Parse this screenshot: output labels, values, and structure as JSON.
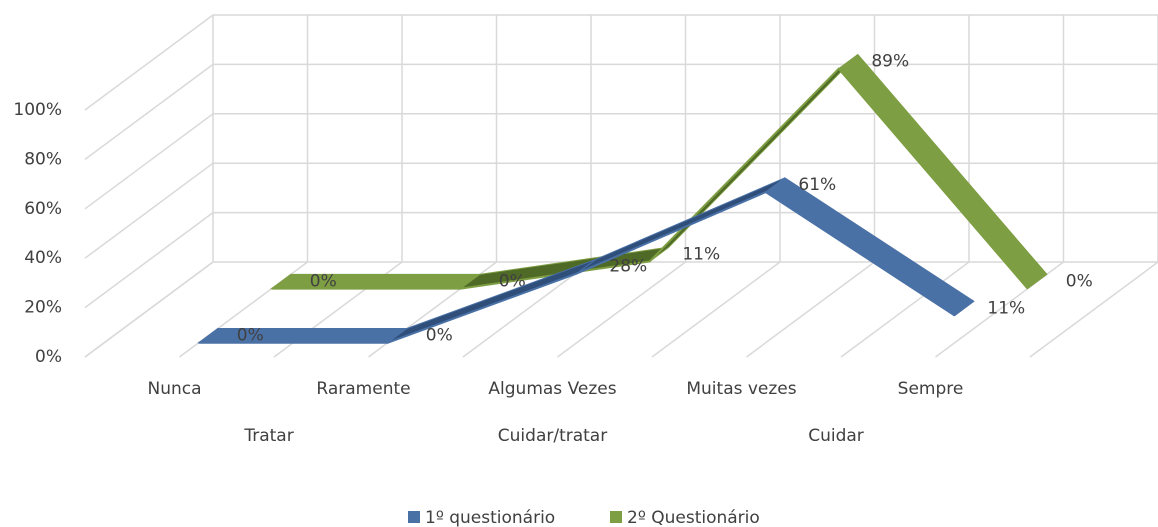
{
  "chart_data": {
    "type": "line3d",
    "categories": [
      "Nunca",
      "Raramente",
      "Algumas Vezes",
      "Muitas vezes",
      "Sempre"
    ],
    "groups": [
      "Tratar",
      "Cuidar/tratar",
      "Cuidar"
    ],
    "series": [
      {
        "name": "1º questionário",
        "color": "#4a71a6",
        "values": [
          0,
          0,
          28,
          61,
          11
        ],
        "value_labels": [
          "0%",
          "0%",
          "28%",
          "61%",
          "11%"
        ]
      },
      {
        "name": "2º Questionário",
        "color": "#7e9e43",
        "values": [
          0,
          0,
          11,
          89,
          0
        ],
        "value_labels": [
          "0%",
          "0%",
          "11%",
          "89%",
          "0%"
        ]
      }
    ],
    "ylim": [
      0,
      100
    ],
    "yticks": [
      {
        "value": 0,
        "label": "0%"
      },
      {
        "value": 20,
        "label": "20%"
      },
      {
        "value": 40,
        "label": "40%"
      },
      {
        "value": 60,
        "label": "60%"
      },
      {
        "value": 80,
        "label": "80%"
      },
      {
        "value": 100,
        "label": "100%"
      }
    ],
    "grid": true,
    "legend": "bottom"
  }
}
